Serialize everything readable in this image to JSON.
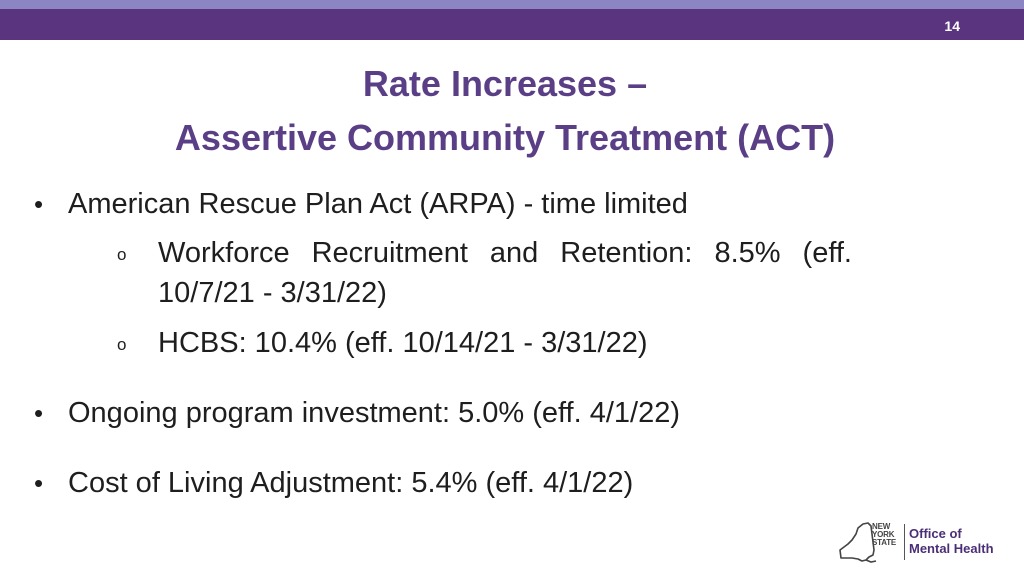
{
  "slide": {
    "page_number": "14",
    "title_line1": "Rate Increases –",
    "title_line2": "Assertive Community Treatment (ACT)"
  },
  "bullets": [
    {
      "text": "American Rescue Plan Act (ARPA) - time limited",
      "sub": [
        {
          "text": "Workforce Recruitment and Retention: 8.5% (eff. 10/7/21 - 3/31/22)"
        },
        {
          "text": "HCBS:  10.4% (eff. 10/14/21 - 3/31/22)"
        }
      ]
    },
    {
      "text": "Ongoing program investment:  5.0% (eff. 4/1/22)"
    },
    {
      "text": "Cost of Living Adjustment:  5.4% (eff. 4/1/22)"
    }
  ],
  "markers": {
    "bullet": "•",
    "sub_bullet": "o"
  },
  "logo": {
    "state_line1": "NEW",
    "state_line2": "YORK",
    "state_line3": "STATE",
    "agency_line1": "Office of",
    "agency_line2": "Mental Health",
    "icon": "new-york-state-map-icon"
  },
  "colors": {
    "header_band_light": "#8c85c4",
    "header_band_dark": "#5b3480",
    "title": "#5a3f86",
    "body_text": "#1e1e1e"
  }
}
